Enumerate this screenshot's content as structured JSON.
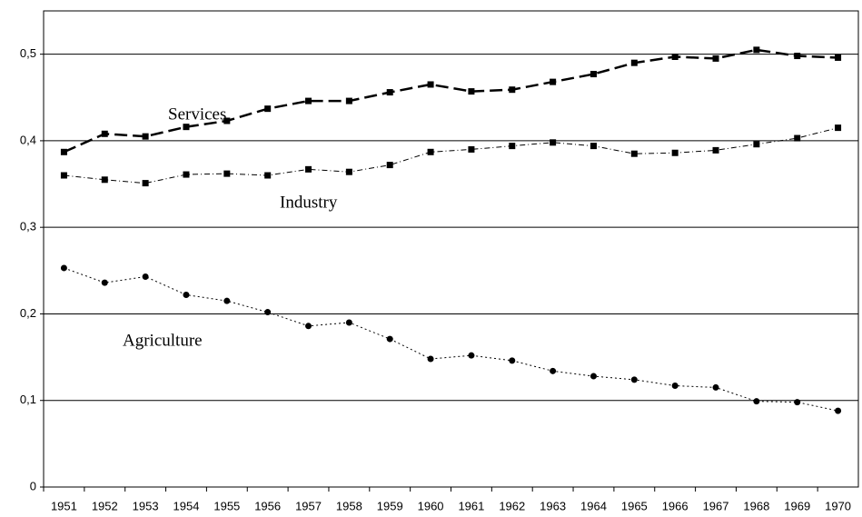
{
  "chart_data": {
    "type": "line",
    "categories": [
      "1951",
      "1952",
      "1953",
      "1954",
      "1955",
      "1956",
      "1957",
      "1958",
      "1959",
      "1960",
      "1961",
      "1962",
      "1963",
      "1964",
      "1965",
      "1966",
      "1967",
      "1968",
      "1969",
      "1970"
    ],
    "series": [
      {
        "name": "Services",
        "color": "#000000",
        "marker": "square",
        "line_style": "dashed",
        "values": [
          0.387,
          0.408,
          0.405,
          0.416,
          0.423,
          0.437,
          0.446,
          0.446,
          0.456,
          0.465,
          0.457,
          0.459,
          0.468,
          0.477,
          0.49,
          0.497,
          0.495,
          0.505,
          0.498,
          0.496
        ]
      },
      {
        "name": "Industry",
        "color": "#000000",
        "marker": "square",
        "line_style": "dashdot",
        "values": [
          0.36,
          0.355,
          0.351,
          0.361,
          0.362,
          0.36,
          0.367,
          0.364,
          0.372,
          0.387,
          0.39,
          0.394,
          0.398,
          0.394,
          0.385,
          0.386,
          0.389,
          0.396,
          0.403,
          0.415
        ]
      },
      {
        "name": "Agriculture",
        "color": "#000000",
        "marker": "circle",
        "line_style": "dotted",
        "values": [
          0.253,
          0.236,
          0.243,
          0.222,
          0.215,
          0.202,
          0.186,
          0.19,
          0.171,
          0.148,
          0.152,
          0.146,
          0.134,
          0.128,
          0.124,
          0.117,
          0.115,
          0.099,
          0.098,
          0.088
        ]
      }
    ],
    "ylim": [
      0,
      0.55
    ],
    "yticks": [
      0,
      {
        "value": 0.1,
        "label": "0,1"
      },
      {
        "value": 0.2,
        "label": "0,2"
      },
      {
        "value": 0.3,
        "label": "0,3"
      },
      {
        "value": 0.4,
        "label": "0,4"
      },
      {
        "value": 0.5,
        "label": "0,5"
      }
    ],
    "grid": true
  }
}
